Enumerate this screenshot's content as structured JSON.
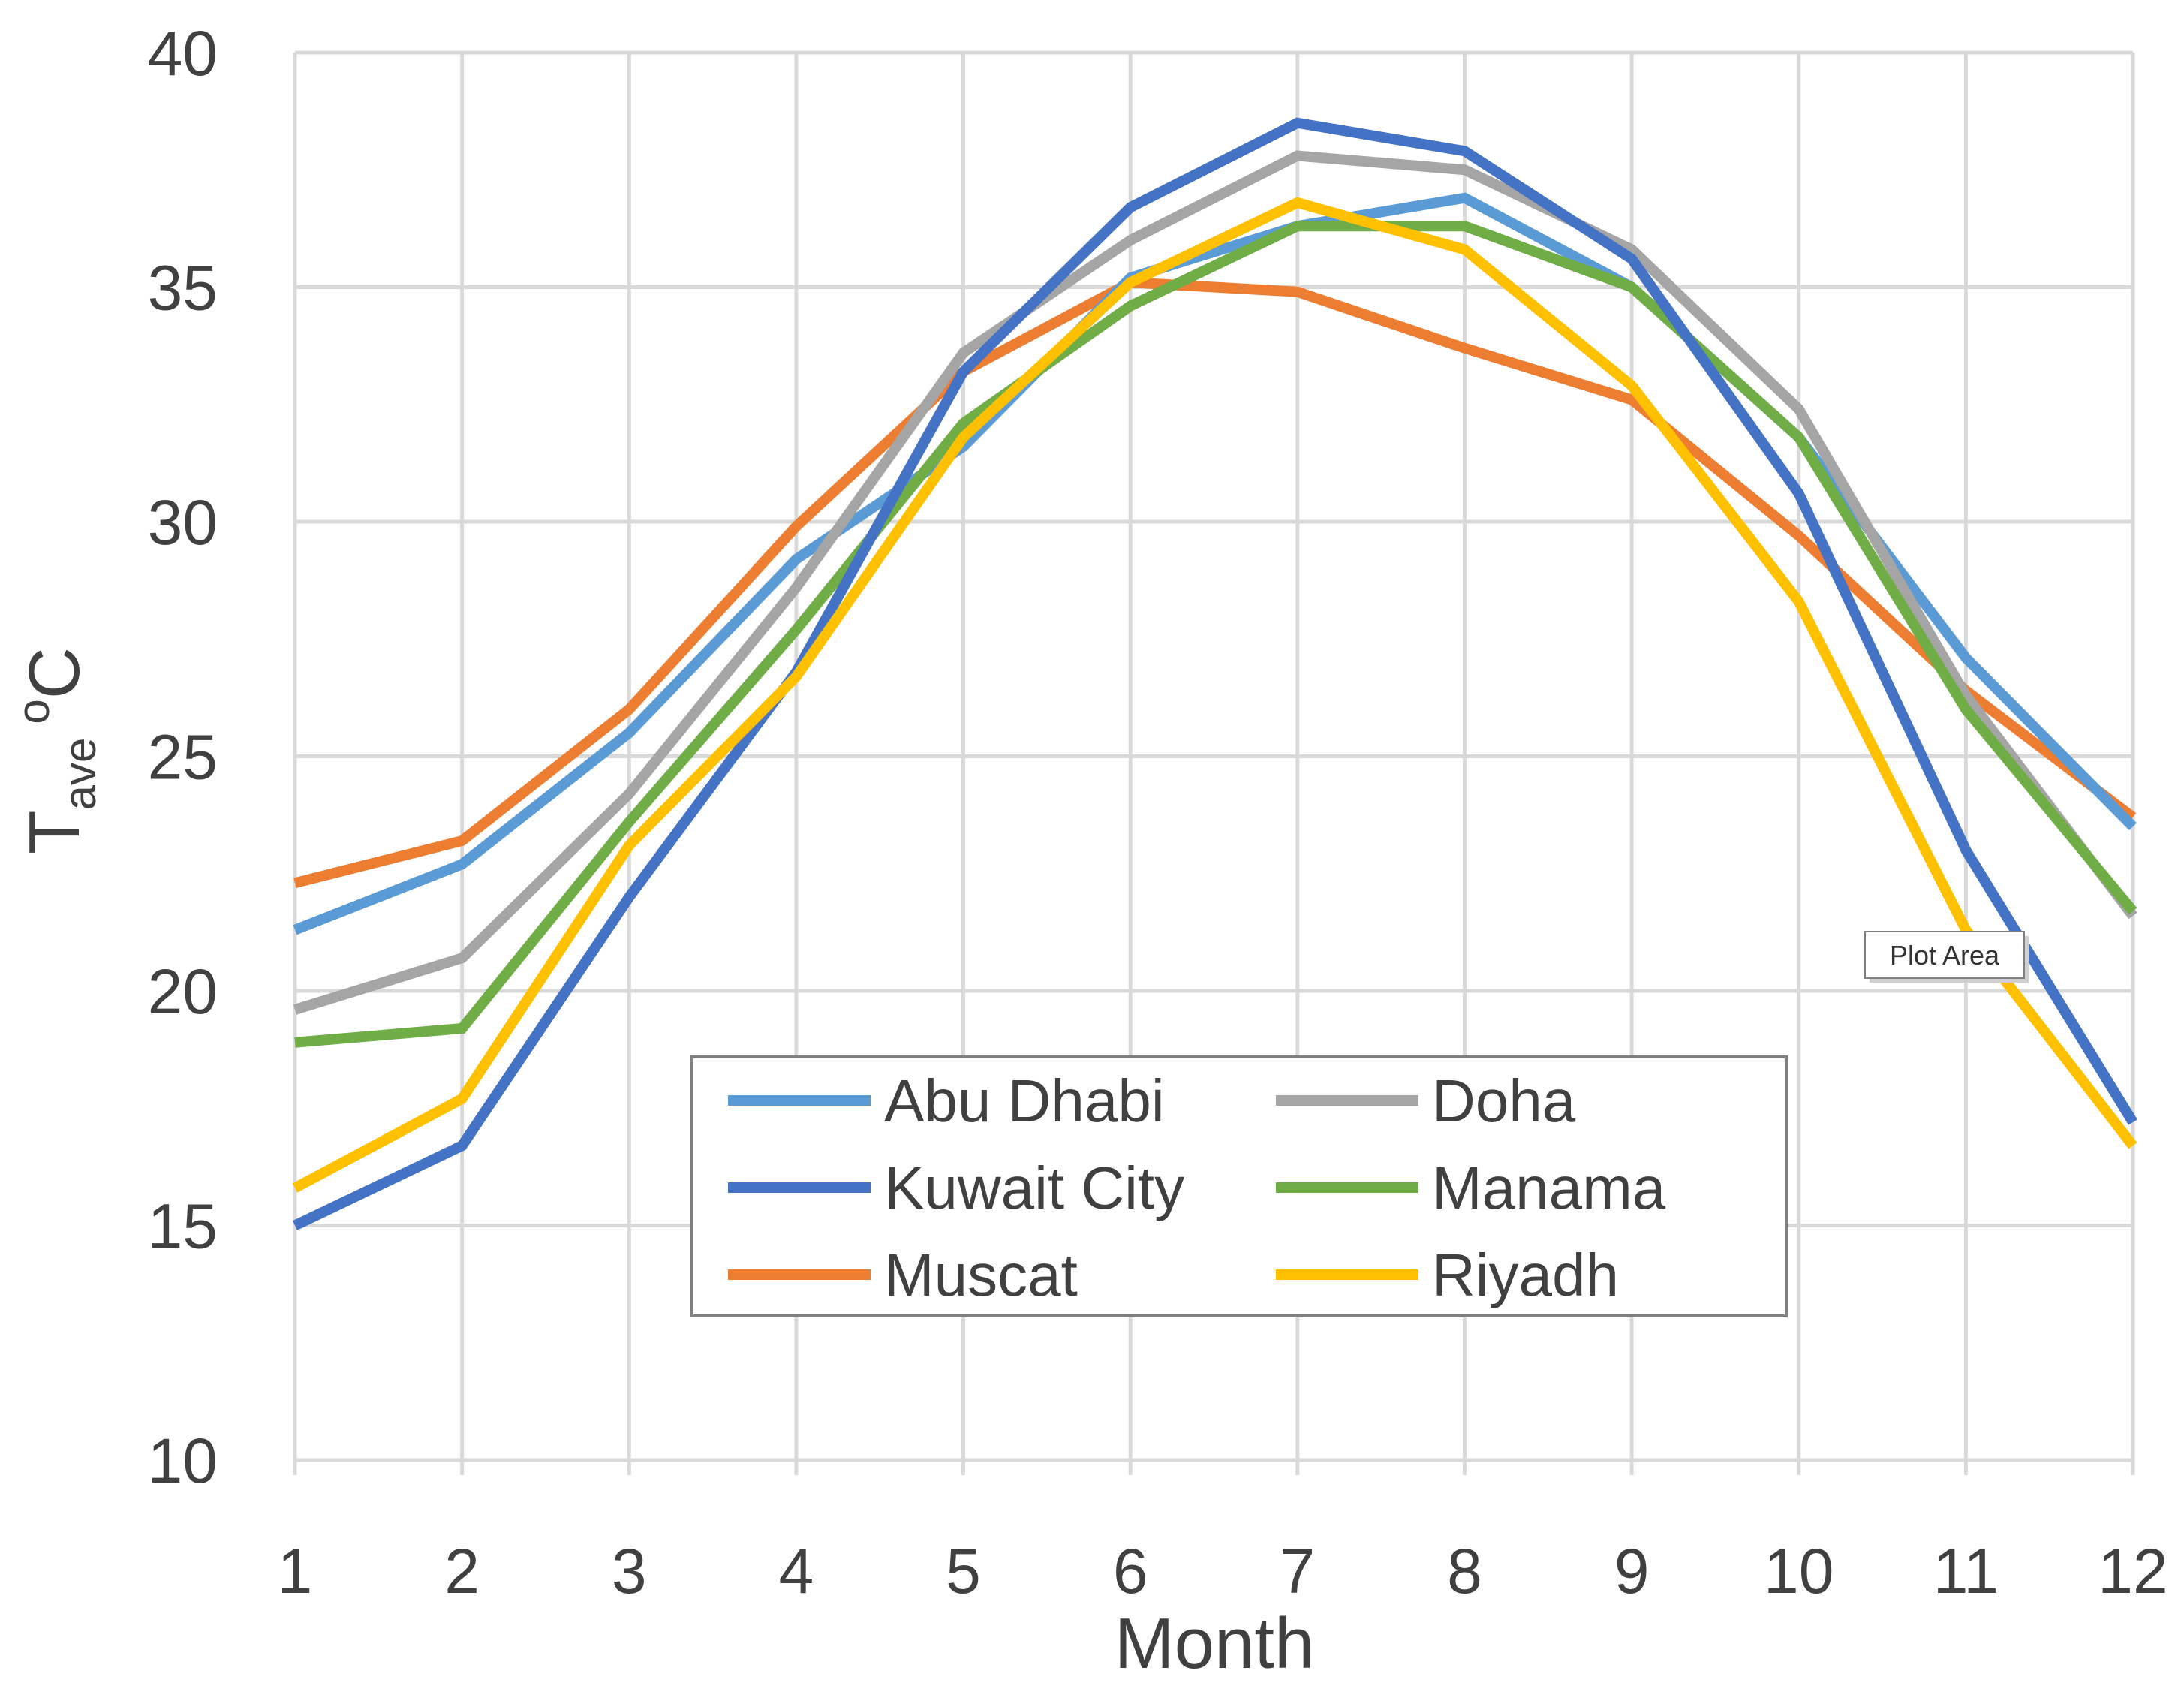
{
  "chart_data": {
    "type": "line",
    "title": "",
    "xlabel": "Month",
    "ylabel": {
      "main": "T",
      "subscript": "ave",
      "superscript": "o",
      "unit": "C"
    },
    "xlim": [
      1,
      12
    ],
    "ylim": [
      10,
      40
    ],
    "x_ticks": [
      "1",
      "2",
      "3",
      "4",
      "5",
      "6",
      "7",
      "8",
      "9",
      "10",
      "11",
      "12"
    ],
    "y_ticks": [
      "10",
      "15",
      "20",
      "25",
      "30",
      "35",
      "40"
    ],
    "x": [
      1,
      2,
      3,
      4,
      5,
      6,
      7,
      8,
      9,
      10,
      11,
      12
    ],
    "grid": true,
    "legend_position": "center-bottom",
    "series": [
      {
        "name": "Abu Dhabi",
        "color": "#5B9BD5",
        "values": [
          21.3,
          22.7,
          25.5,
          29.2,
          31.6,
          35.2,
          36.3,
          36.9,
          35.0,
          31.8,
          27.1,
          23.5
        ]
      },
      {
        "name": "Doha",
        "color": "#A5A5A5",
        "values": [
          19.6,
          20.7,
          24.2,
          28.6,
          33.6,
          36.0,
          37.8,
          37.5,
          35.8,
          32.4,
          26.3,
          21.6
        ]
      },
      {
        "name": "Kuwait City",
        "color": "#4472C4",
        "values": [
          15.0,
          16.7,
          22.0,
          26.8,
          33.2,
          36.7,
          38.5,
          37.9,
          35.6,
          30.6,
          23.0,
          17.2
        ]
      },
      {
        "name": "Manama",
        "color": "#70AD47",
        "values": [
          18.9,
          19.2,
          23.6,
          27.7,
          32.1,
          34.6,
          36.3,
          36.3,
          35.0,
          31.8,
          26.0,
          21.7
        ]
      },
      {
        "name": "Muscat",
        "color": "#ED7D31",
        "values": [
          22.3,
          23.2,
          26.0,
          29.9,
          33.2,
          35.1,
          34.9,
          33.7,
          32.6,
          29.7,
          26.4,
          23.7
        ]
      },
      {
        "name": "Riyadh",
        "color": "#FFC000",
        "values": [
          15.8,
          17.7,
          23.1,
          26.7,
          31.8,
          35.1,
          36.8,
          35.8,
          32.9,
          28.3,
          21.3,
          16.7
        ]
      }
    ]
  },
  "tooltip": {
    "label": "Plot Area"
  }
}
